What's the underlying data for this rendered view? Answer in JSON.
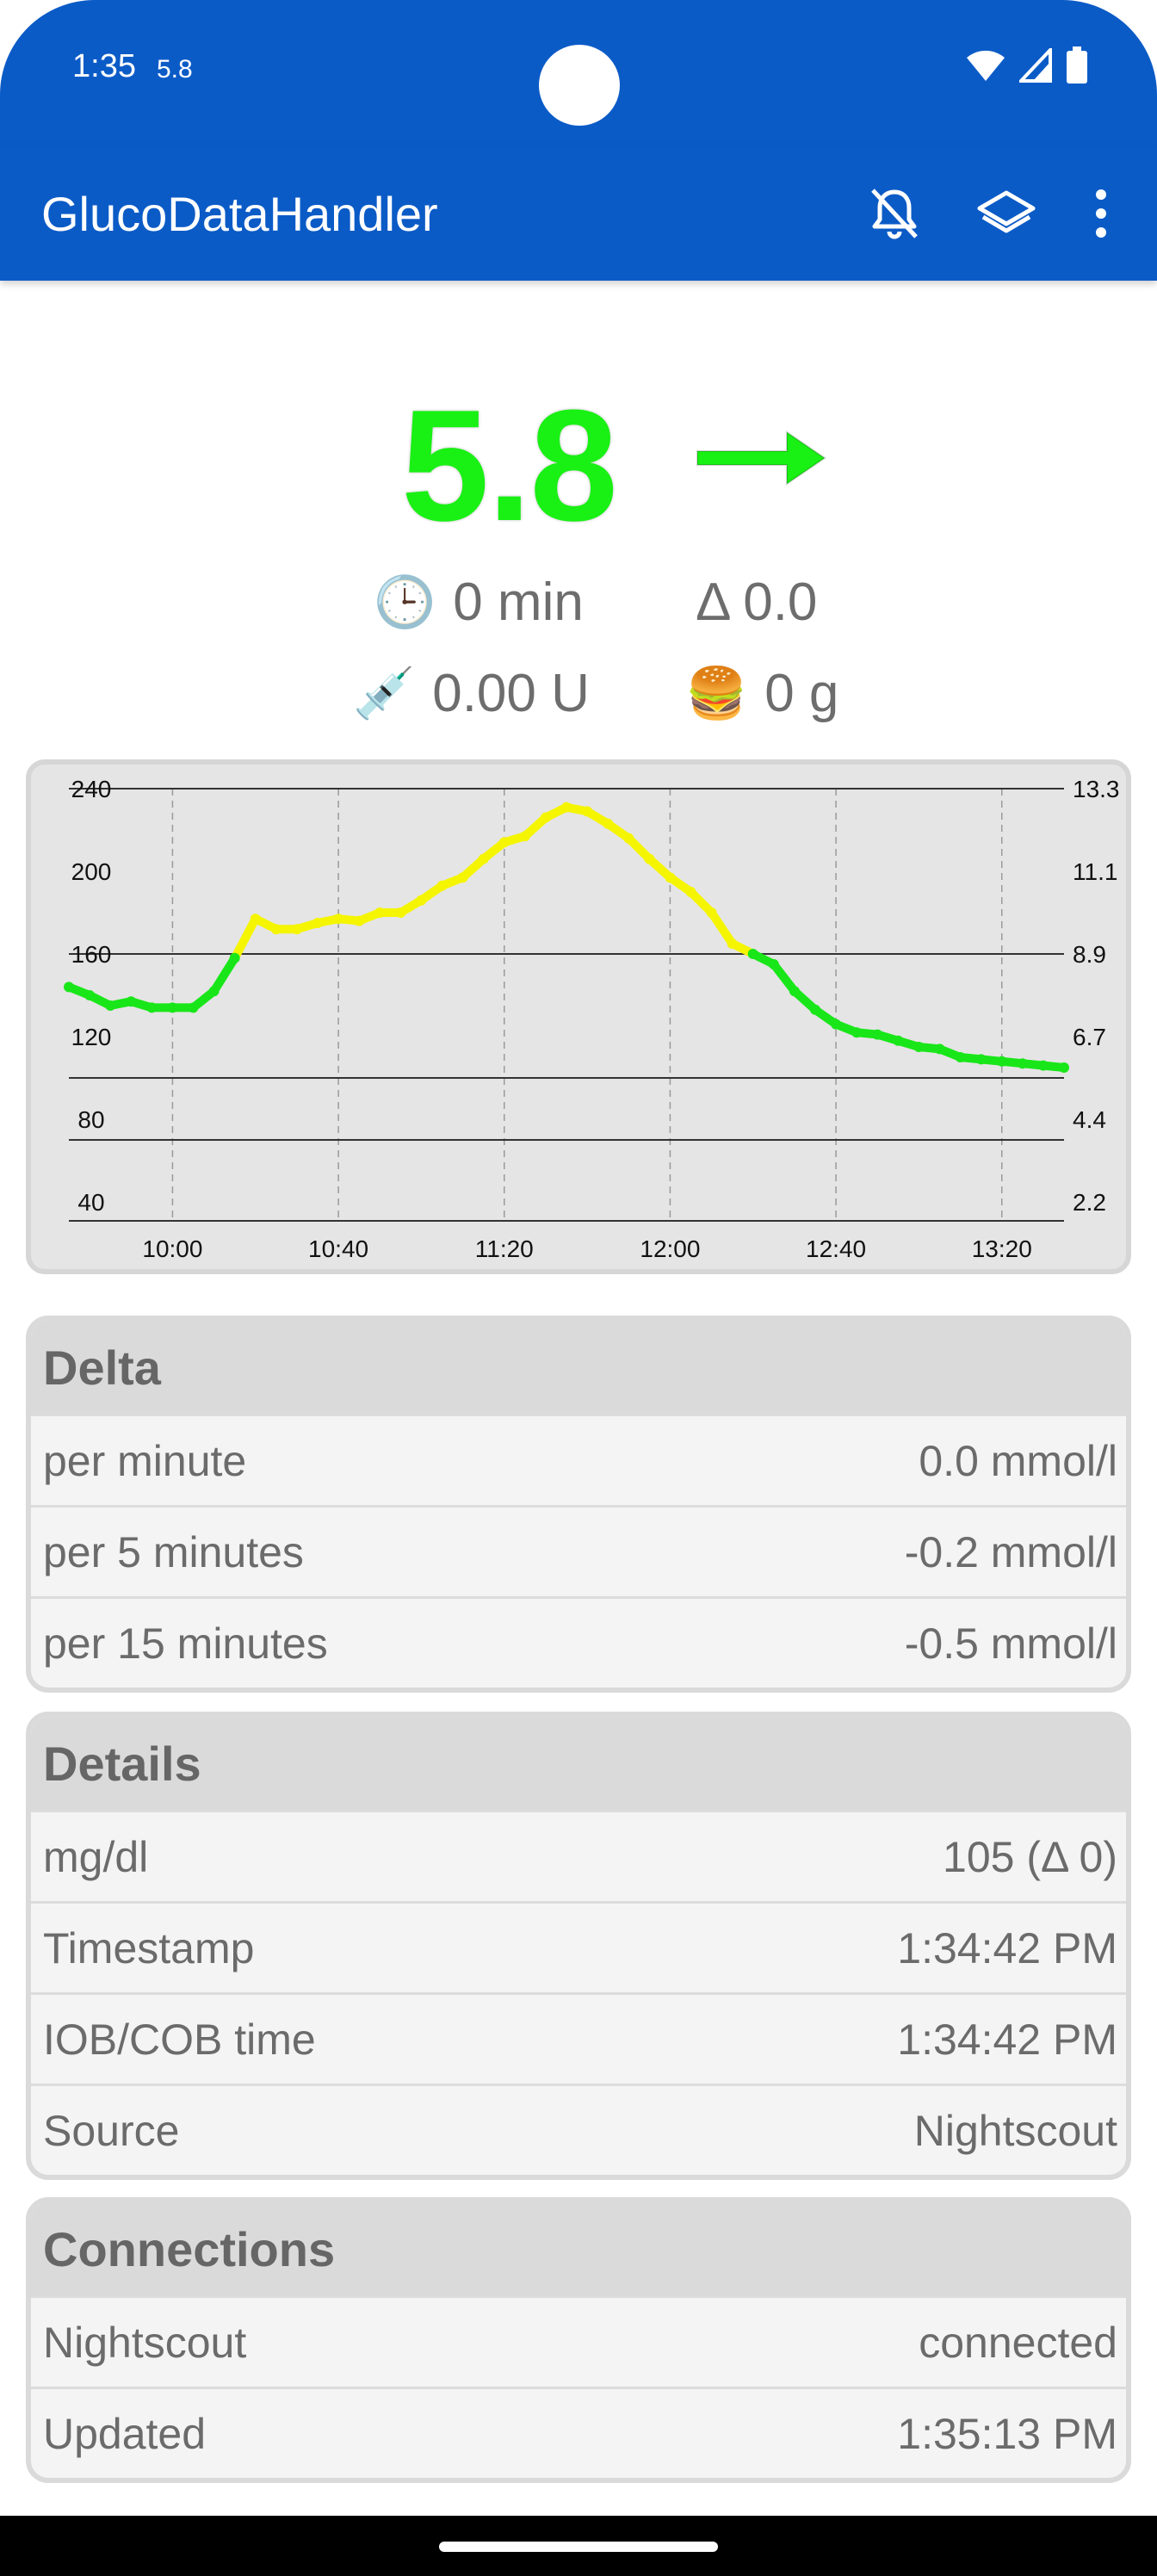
{
  "status_bar": {
    "time": "1:35",
    "glucose_small": "5.8"
  },
  "app_bar": {
    "title": "GlucoDataHandler",
    "icons": [
      "bell-off-icon",
      "layers-icon",
      "more-vert-icon"
    ],
    "color": "#0b5bc7"
  },
  "hero": {
    "value": "5.8",
    "value_color": "#19f014",
    "trend": "right-arrow",
    "time_ago": "0 min",
    "delta": "Δ 0.0",
    "iob": "0.00 U",
    "cob": "0 g"
  },
  "chart_data": {
    "type": "line",
    "x_tick_labels": [
      "10:00",
      "10:40",
      "11:20",
      "12:00",
      "12:40",
      "13:20"
    ],
    "y_left_ticks": [
      40,
      80,
      120,
      160,
      200,
      240
    ],
    "y_right_ticks": [
      "2.2",
      "4.4",
      "6.7",
      "8.9",
      "11.1",
      "13.3"
    ],
    "ylim": [
      40,
      240
    ],
    "x_range_minutes": [
      -25,
      215
    ],
    "threshold_lines": [
      70,
      100,
      160,
      240
    ],
    "high_threshold": 160,
    "colors": {
      "in_range": "#19e619",
      "high": "#f5f500"
    },
    "series": [
      {
        "x": [
          -25,
          -20,
          -15,
          -10,
          -5,
          0,
          5,
          10,
          15,
          20,
          25,
          30,
          35,
          40,
          45,
          50,
          55,
          60,
          65,
          70,
          75,
          80,
          85,
          90,
          95,
          100,
          105,
          110,
          115,
          120,
          125,
          130,
          135,
          140,
          145,
          150,
          155,
          160,
          165,
          170,
          175,
          180,
          185,
          190,
          195,
          200,
          205,
          210,
          215
        ],
        "y": [
          144,
          140,
          135,
          137,
          134,
          134,
          134,
          142,
          158,
          177,
          172,
          172,
          175,
          177,
          176,
          180,
          180,
          186,
          193,
          197,
          206,
          214,
          217,
          226,
          231,
          229,
          223,
          216,
          206,
          197,
          190,
          180,
          165,
          160,
          155,
          142,
          133,
          126,
          122,
          121,
          118,
          115,
          114,
          110,
          109,
          108,
          107,
          106,
          105
        ]
      }
    ]
  },
  "delta": {
    "title": "Delta",
    "rows": [
      {
        "label": "per minute",
        "value": "0.0 mmol/l"
      },
      {
        "label": "per 5 minutes",
        "value": "-0.2 mmol/l"
      },
      {
        "label": "per 15 minutes",
        "value": "-0.5 mmol/l"
      }
    ]
  },
  "details": {
    "title": "Details",
    "rows": [
      {
        "label": "mg/dl",
        "value": "105 (Δ 0)"
      },
      {
        "label": "Timestamp",
        "value": "1:34:42 PM"
      },
      {
        "label": "IOB/COB time",
        "value": "1:34:42 PM"
      },
      {
        "label": "Source",
        "value": "Nightscout"
      }
    ]
  },
  "connections": {
    "title": "Connections",
    "rows": [
      {
        "label": "Nightscout",
        "value": "connected"
      },
      {
        "label": "Updated",
        "value": "1:35:13 PM"
      }
    ]
  }
}
